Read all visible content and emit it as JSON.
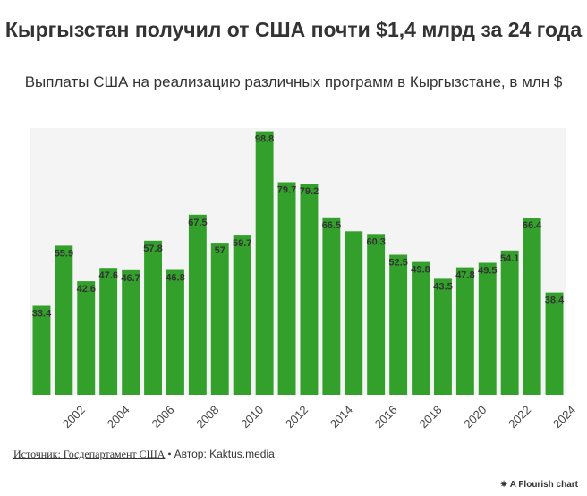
{
  "chart_data": {
    "type": "bar",
    "title": "Кыргызстан получил от США почти $1,4 млрд за 24 года",
    "subtitle": "Выплаты США на реализацию различных программ в Кыргызстане, в млн $",
    "categories": [
      "2001",
      "2002",
      "2003",
      "2004",
      "2005",
      "2006",
      "2007",
      "2008",
      "2009",
      "2010",
      "2011",
      "2012",
      "2013",
      "2014",
      "2015",
      "2016",
      "2017",
      "2018",
      "2019",
      "2020",
      "2021",
      "2022",
      "2023",
      "2024"
    ],
    "x_tick_labels": [
      "2002",
      "2004",
      "2006",
      "2008",
      "2010",
      "2012",
      "2014",
      "2016",
      "2018",
      "2020",
      "2022",
      "2024"
    ],
    "values": [
      33.4,
      55.9,
      42.6,
      47.6,
      46.7,
      57.8,
      46.8,
      67.5,
      57,
      59.7,
      98.8,
      79.7,
      79.2,
      66.5,
      61.3,
      60.3,
      52.5,
      49.8,
      43.5,
      47.8,
      49.5,
      54.1,
      66.4,
      38.4
    ],
    "data_labels": [
      "33.4",
      "55.9",
      "42.6",
      "47.6",
      "46.7",
      "57.8",
      "46.8",
      "67.5",
      "57",
      "59.7",
      "98.8",
      "79.7",
      "79.2",
      "66.5",
      "",
      "60.3",
      "52.5",
      "49.8",
      "43.5",
      "47.8",
      "49.5",
      "54.1",
      "66.4",
      "38.4"
    ],
    "ylim": [
      0,
      100
    ],
    "grid": false,
    "colors": {
      "bar": "#33a02c",
      "plot_bg": "#f4f4f4",
      "text": "#333333"
    }
  },
  "footer": {
    "source": "Источник: Госдепартамент США",
    "separator": " • ",
    "author": "Автор: Kaktus.media"
  },
  "flourish": {
    "icon": "flourish-star-icon",
    "label": "✷ A Flourish chart"
  }
}
